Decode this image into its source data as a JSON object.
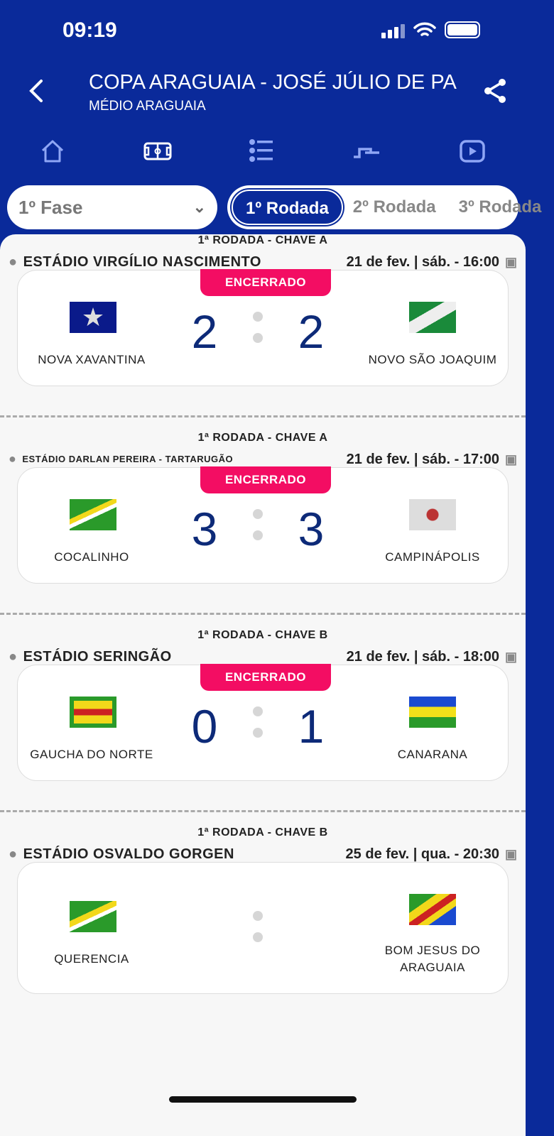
{
  "status": {
    "time": "09:19"
  },
  "header": {
    "title": "COPA ARAGUAIA - JOSÉ JÚLIO DE PA",
    "subtitle": "MÉDIO ARAGUAIA"
  },
  "nav_icons": [
    "home-icon",
    "soccer-field-icon",
    "list-icon",
    "bracket-icon",
    "video-icon"
  ],
  "filters": {
    "phase": "1º Fase",
    "rounds": [
      {
        "label": "1º Rodada",
        "active": true
      },
      {
        "label": "2º Rodada"
      },
      {
        "label": "3º Rodada"
      }
    ]
  },
  "colors": {
    "header": "#0a2a9a",
    "badge": "#f30d63",
    "score": "#0d2a78"
  },
  "matches": [
    {
      "round": "1ª RODADA - CHAVE A",
      "venue": "ESTÁDIO VIRGÍLIO NASCIMENTO",
      "date": "21 de fev. | sáb. - 16:00",
      "status": "ENCERRADO",
      "home": "NOVA XAVANTINA",
      "away": "NOVO SÃO JOAQUIM",
      "home_score": "2",
      "away_score": "2"
    },
    {
      "round": "1ª RODADA - CHAVE A",
      "venue": "ESTÁDIO DARLAN PEREIRA - TARTARUGÃO",
      "date": "21 de fev. | sáb. - 17:00",
      "status": "ENCERRADO",
      "home": "COCALINHO",
      "away": "CAMPINÁPOLIS",
      "home_score": "3",
      "away_score": "3"
    },
    {
      "round": "1ª RODADA - CHAVE B",
      "venue": "ESTÁDIO SERINGÃO",
      "date": "21 de fev. | sáb. - 18:00",
      "status": "ENCERRADO",
      "home": "GAUCHA DO NORTE",
      "away": "CANARANA",
      "home_score": "0",
      "away_score": "1"
    },
    {
      "round": "1ª RODADA - CHAVE B",
      "venue": "ESTÁDIO OSVALDO GORGEN",
      "date": "25 de fev. | qua. - 20:30",
      "home": "QUERENCIA",
      "away": "BOM JESUS DO ARAGUAIA"
    }
  ]
}
